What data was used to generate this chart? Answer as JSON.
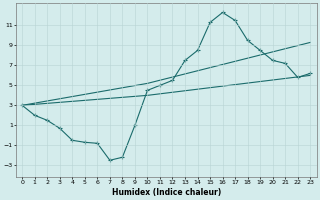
{
  "xlabel": "Humidex (Indice chaleur)",
  "background_color": "#d4ecec",
  "grid_color": "#b8d4d4",
  "line_color": "#1a6b6b",
  "xlim": [
    -0.5,
    23.5
  ],
  "ylim": [
    -4.2,
    13.2
  ],
  "xticks": [
    0,
    1,
    2,
    3,
    4,
    5,
    6,
    7,
    8,
    9,
    10,
    11,
    12,
    13,
    14,
    15,
    16,
    17,
    18,
    19,
    20,
    21,
    22,
    23
  ],
  "yticks": [
    -3,
    -1,
    1,
    3,
    5,
    7,
    9,
    11
  ],
  "line1_x": [
    0,
    1,
    2,
    3,
    4,
    5,
    6,
    7,
    8,
    9,
    10,
    11,
    12,
    13,
    14,
    15,
    16,
    17,
    18,
    19,
    20,
    21,
    22,
    23
  ],
  "line1_y": [
    3.0,
    2.0,
    1.5,
    0.7,
    -0.5,
    -0.7,
    -0.8,
    -2.5,
    -2.2,
    1.0,
    4.5,
    5.0,
    5.5,
    7.5,
    8.5,
    11.3,
    12.3,
    11.5,
    9.5,
    8.5,
    7.5,
    7.2,
    5.8,
    6.2
  ],
  "line2_x": [
    0,
    10,
    23
  ],
  "line2_y": [
    3.0,
    5.2,
    9.3
  ],
  "line3_x": [
    0,
    10,
    23
  ],
  "line3_y": [
    3.0,
    4.0,
    6.0
  ]
}
